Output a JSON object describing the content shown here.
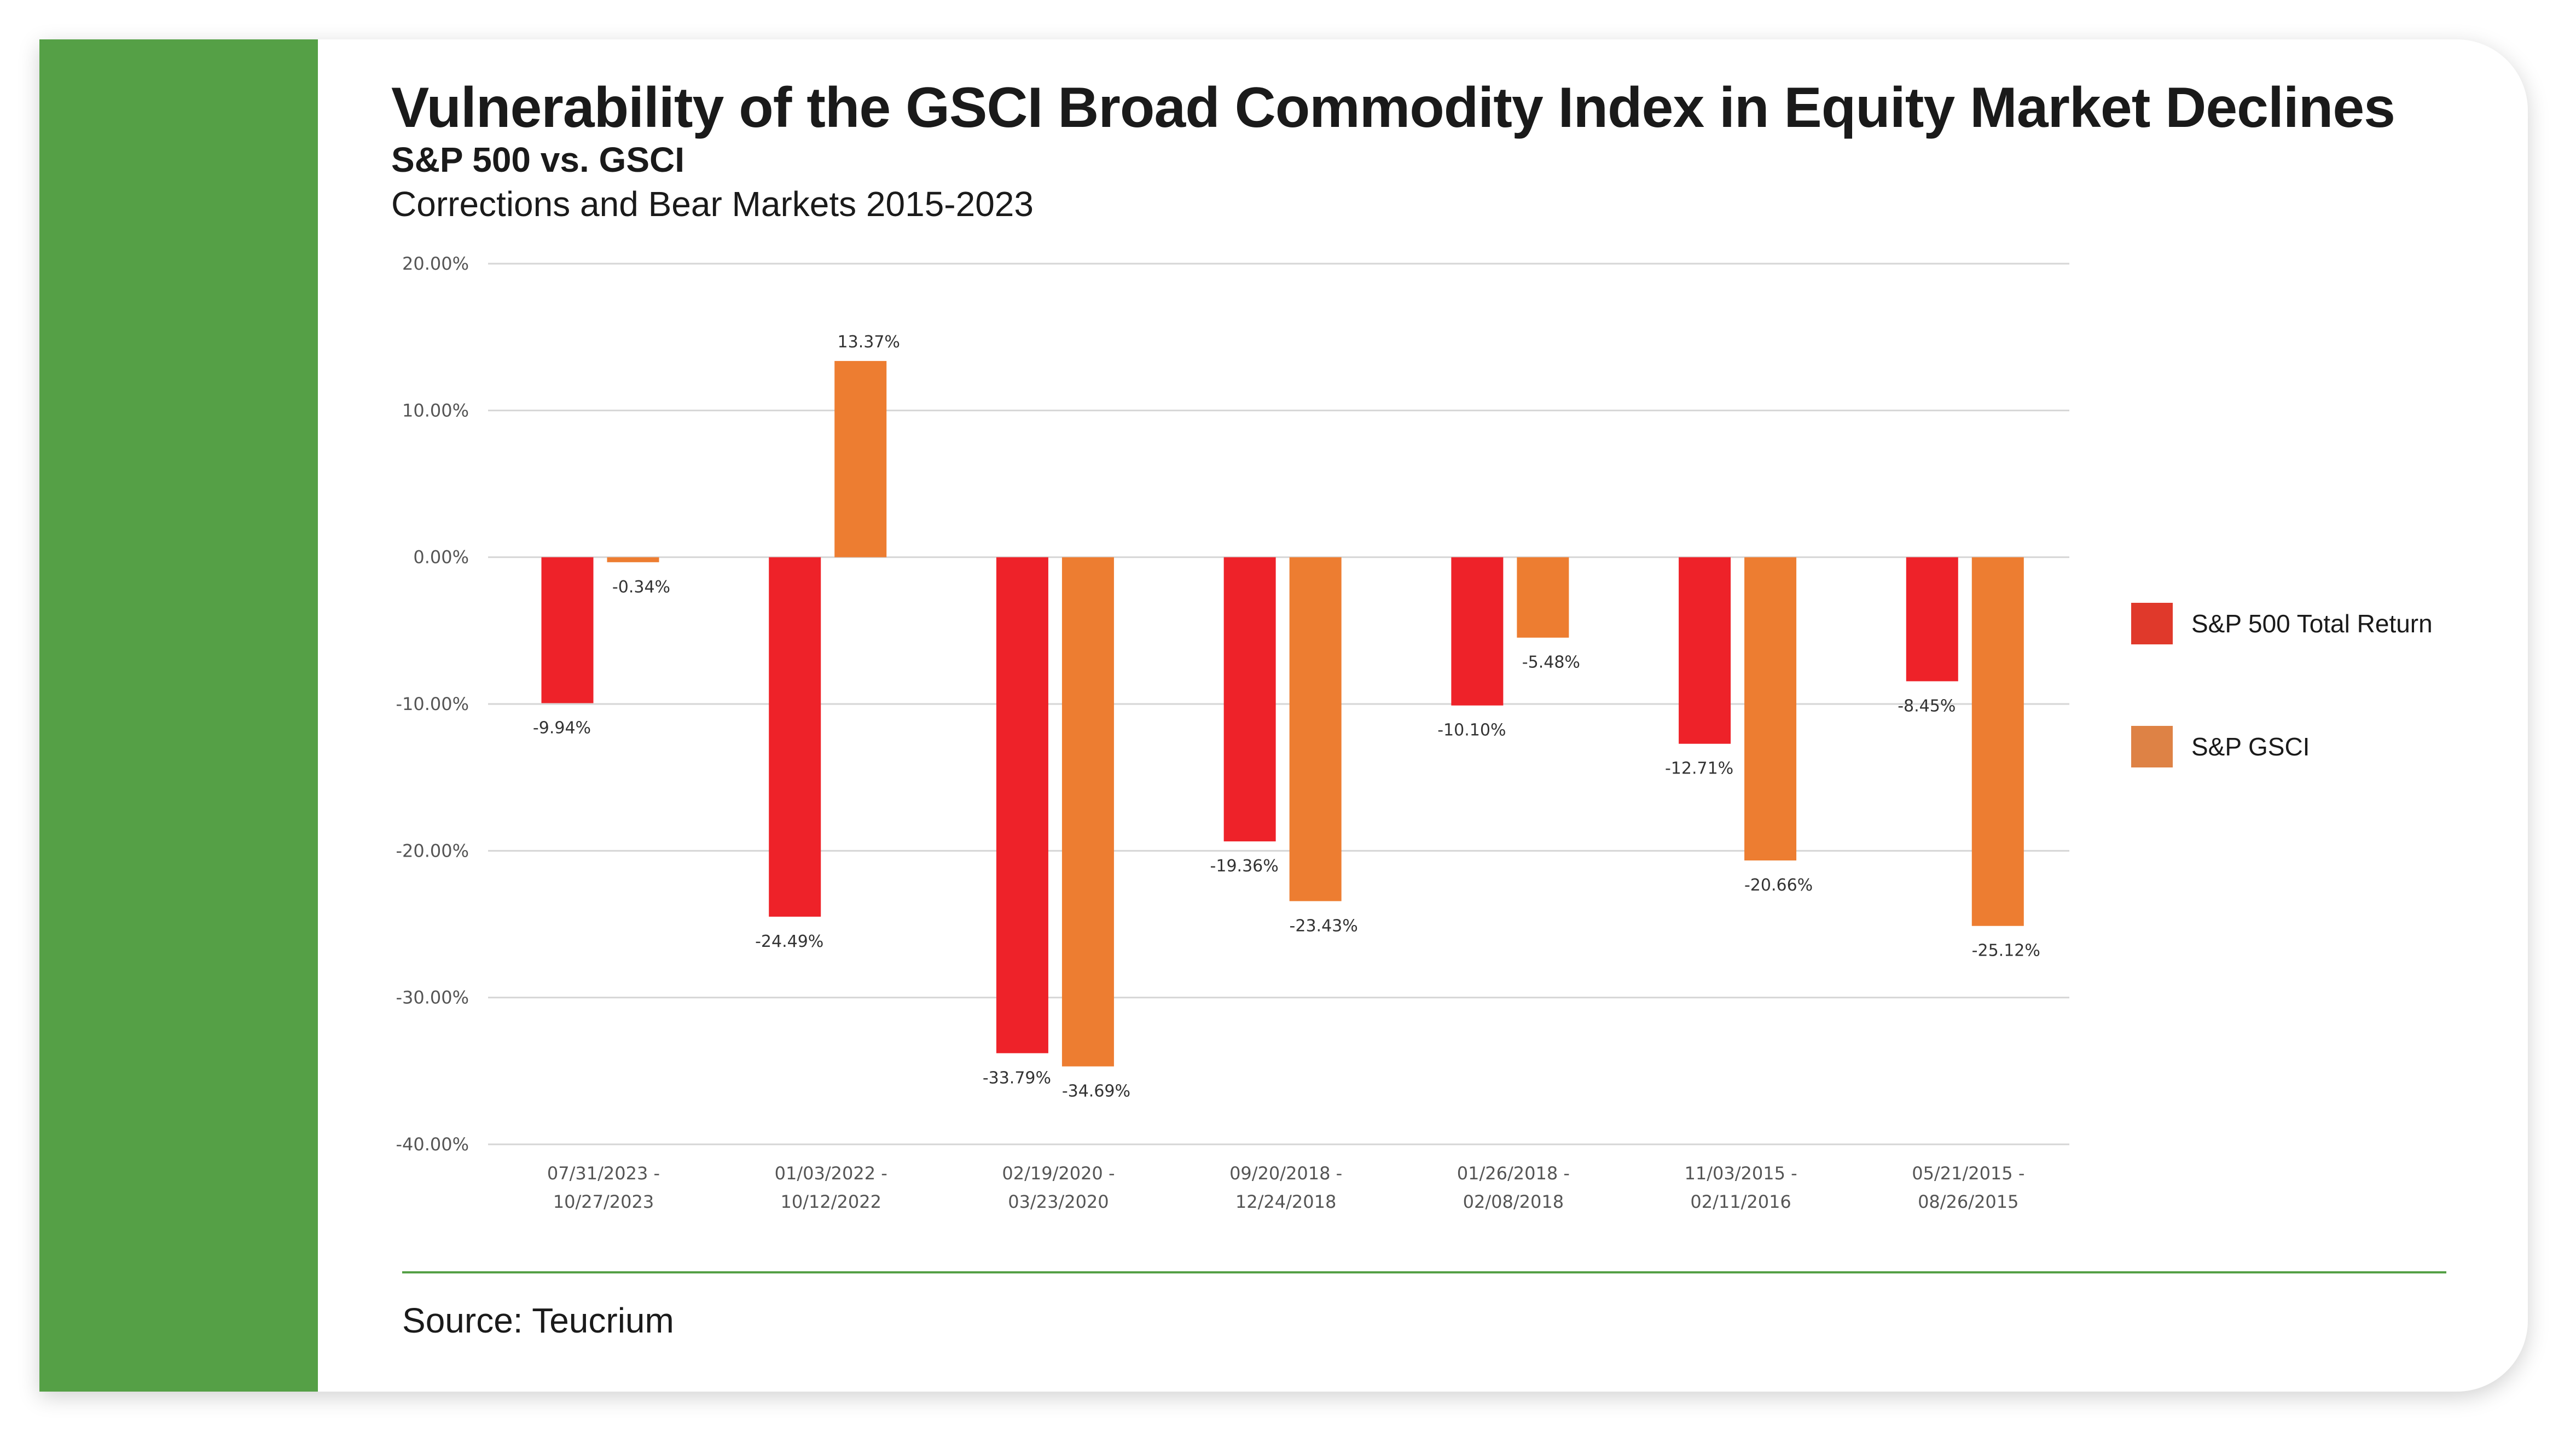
{
  "header": {
    "title": "Vulnerability of the GSCI Broad Commodity Index in Equity Market Declines",
    "subtitle": "S&P 500 vs. GSCI",
    "subtitle2": "Corrections and Bear Markets 2015-2023"
  },
  "footer": {
    "source": "Source: Teucrium"
  },
  "colors": {
    "brand_green": "#55a046",
    "sp500": "#ee2229",
    "gsci": "#ed7d31"
  },
  "chart_data": {
    "type": "bar",
    "title": "Vulnerability of the GSCI Broad Commodity Index in Equity Market Declines",
    "xlabel": "",
    "ylabel": "",
    "ylim": [
      -40,
      20
    ],
    "yticks": [
      "20.00%",
      "10.00%",
      "0.00%",
      "-10.00%",
      "-20.00%",
      "-30.00%",
      "-40.00%"
    ],
    "ytick_values": [
      20,
      10,
      0,
      -10,
      -20,
      -30,
      -40
    ],
    "grid": true,
    "legend_position": "right",
    "categories": [
      [
        "07/31/2023 -",
        "10/27/2023"
      ],
      [
        "01/03/2022 -",
        "10/12/2022"
      ],
      [
        "02/19/2020 -",
        "03/23/2020"
      ],
      [
        "09/20/2018 -",
        "12/24/2018"
      ],
      [
        "01/26/2018 -",
        "02/08/2018"
      ],
      [
        "11/03/2015 -",
        "02/11/2016"
      ],
      [
        "05/21/2015 -",
        "08/26/2015"
      ]
    ],
    "series": [
      {
        "name": "S&P 500 Total Return",
        "color": "#ee2229",
        "legend_color": "#e0392b",
        "values": [
          -9.94,
          -24.49,
          -33.79,
          -19.36,
          -10.1,
          -12.71,
          -8.45
        ],
        "labels": [
          "-9.94%",
          "-24.49%",
          "-33.79%",
          "-19.36%",
          "-10.10%",
          "-12.71%",
          "-8.45%"
        ]
      },
      {
        "name": "S&P GSCI",
        "color": "#ed7d31",
        "legend_color": "#de8245",
        "values": [
          -0.34,
          13.37,
          -34.69,
          -23.43,
          -5.48,
          -20.66,
          -25.12
        ],
        "labels": [
          "-0.34%",
          "13.37%",
          "-34.69%",
          "-23.43%",
          "-5.48%",
          "-20.66%",
          "-25.12%"
        ]
      }
    ]
  }
}
